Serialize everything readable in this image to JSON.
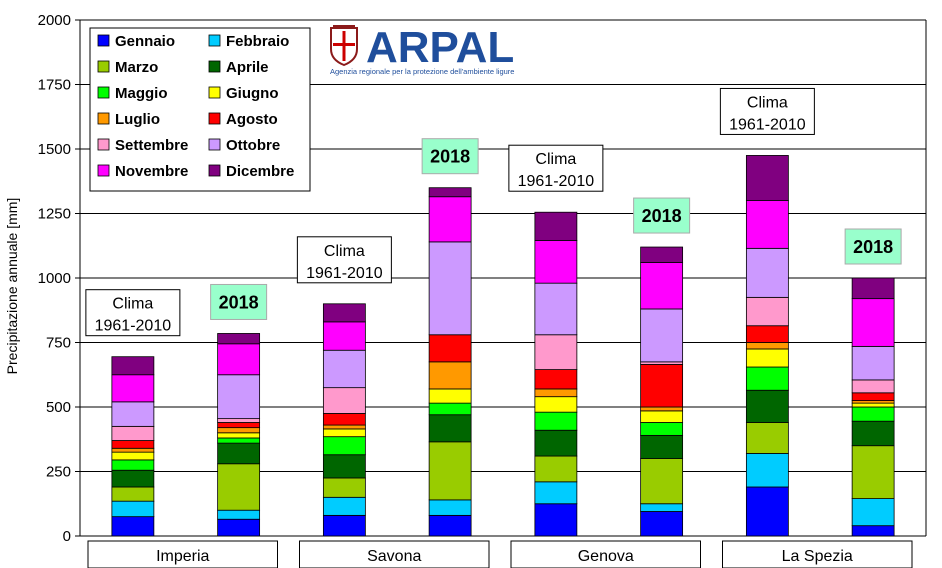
{
  "chart_data": {
    "type": "stacked-bar",
    "ylabel": "Precipitazione annuale [mm]",
    "ylim": [
      0,
      2000
    ],
    "yticks": [
      0,
      250,
      500,
      750,
      1000,
      1250,
      1500,
      1750,
      2000
    ],
    "grid": true,
    "legend_position": "top-left",
    "months": [
      "Gennaio",
      "Febbraio",
      "Marzo",
      "Aprile",
      "Maggio",
      "Giugno",
      "Luglio",
      "Agosto",
      "Settembre",
      "Ottobre",
      "Novembre",
      "Dicembre"
    ],
    "month_colors": [
      "#0000ff",
      "#00ccff",
      "#99cc00",
      "#006600",
      "#00ff00",
      "#ffff00",
      "#ff9900",
      "#ff0000",
      "#ff99cc",
      "#cc99ff",
      "#ff00ff",
      "#800080"
    ],
    "regions": [
      "Imperia",
      "Savona",
      "Genova",
      "La Spezia"
    ],
    "bars": [
      {
        "region": "Imperia",
        "label": "Clima\n1961-2010",
        "kind": "clima",
        "values": [
          75,
          60,
          55,
          65,
          40,
          30,
          15,
          30,
          55,
          95,
          105,
          70
        ]
      },
      {
        "region": "Imperia",
        "label": "2018",
        "kind": "year",
        "values": [
          65,
          35,
          180,
          80,
          20,
          20,
          20,
          20,
          15,
          170,
          120,
          40
        ]
      },
      {
        "region": "Savona",
        "label": "Clima\n1961-2010",
        "kind": "clima",
        "values": [
          80,
          70,
          75,
          90,
          70,
          30,
          15,
          45,
          100,
          145,
          110,
          70
        ]
      },
      {
        "region": "Savona",
        "label": "2018",
        "kind": "year",
        "values": [
          80,
          60,
          225,
          105,
          45,
          55,
          105,
          105,
          0,
          360,
          175,
          35
        ]
      },
      {
        "region": "Genova",
        "label": "Clima\n1961-2010",
        "kind": "clima",
        "values": [
          125,
          85,
          100,
          100,
          70,
          60,
          30,
          75,
          135,
          200,
          165,
          110
        ]
      },
      {
        "region": "Genova",
        "label": "2018",
        "kind": "year",
        "values": [
          95,
          30,
          175,
          90,
          50,
          45,
          15,
          165,
          10,
          205,
          180,
          60
        ]
      },
      {
        "region": "La Spezia",
        "label": "Clima\n1961-2010",
        "kind": "clima",
        "values": [
          190,
          130,
          120,
          125,
          90,
          70,
          25,
          65,
          110,
          190,
          185,
          175
        ]
      },
      {
        "region": "La Spezia",
        "label": "2018",
        "kind": "year",
        "values": [
          40,
          105,
          205,
          95,
          55,
          15,
          10,
          30,
          50,
          130,
          185,
          80
        ]
      }
    ]
  },
  "logo": {
    "name": "ARPAL",
    "subtitle": "Agenzia regionale per la protezione dell'ambiente ligure"
  }
}
